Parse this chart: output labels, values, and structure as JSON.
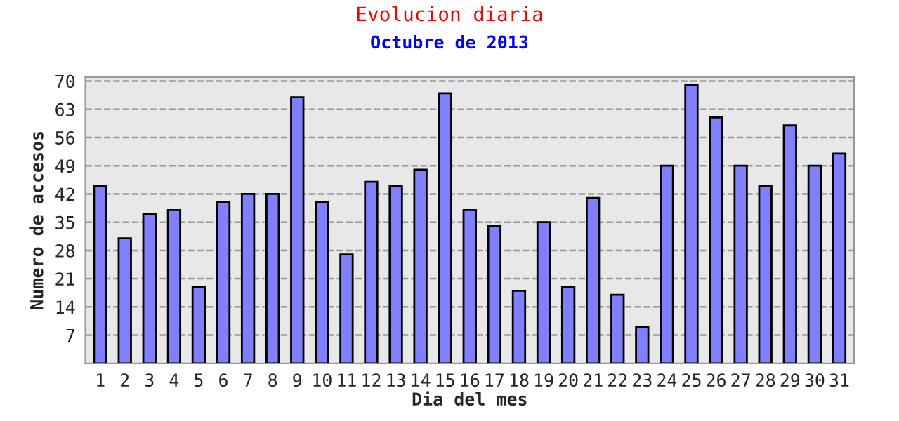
{
  "chart_data": {
    "type": "bar",
    "title": "Evolucion diaria",
    "subtitle": "Octubre de 2013",
    "xlabel": "Dia del mes",
    "ylabel": "Numero de accesos",
    "categories": [
      "1",
      "2",
      "3",
      "4",
      "5",
      "6",
      "7",
      "8",
      "9",
      "10",
      "11",
      "12",
      "13",
      "14",
      "15",
      "16",
      "17",
      "18",
      "19",
      "20",
      "21",
      "22",
      "23",
      "24",
      "25",
      "26",
      "27",
      "28",
      "29",
      "30",
      "31"
    ],
    "values": [
      44,
      31,
      37,
      38,
      19,
      40,
      42,
      42,
      66,
      40,
      27,
      45,
      44,
      48,
      67,
      38,
      34,
      18,
      35,
      19,
      41,
      17,
      9,
      49,
      69,
      61,
      49,
      44,
      59,
      49,
      52
    ],
    "color": "#8080ff",
    "ylim": [
      0,
      71
    ],
    "yticks": [
      7,
      14,
      21,
      28,
      35,
      42,
      49,
      56,
      63,
      70
    ],
    "grid": "y"
  }
}
